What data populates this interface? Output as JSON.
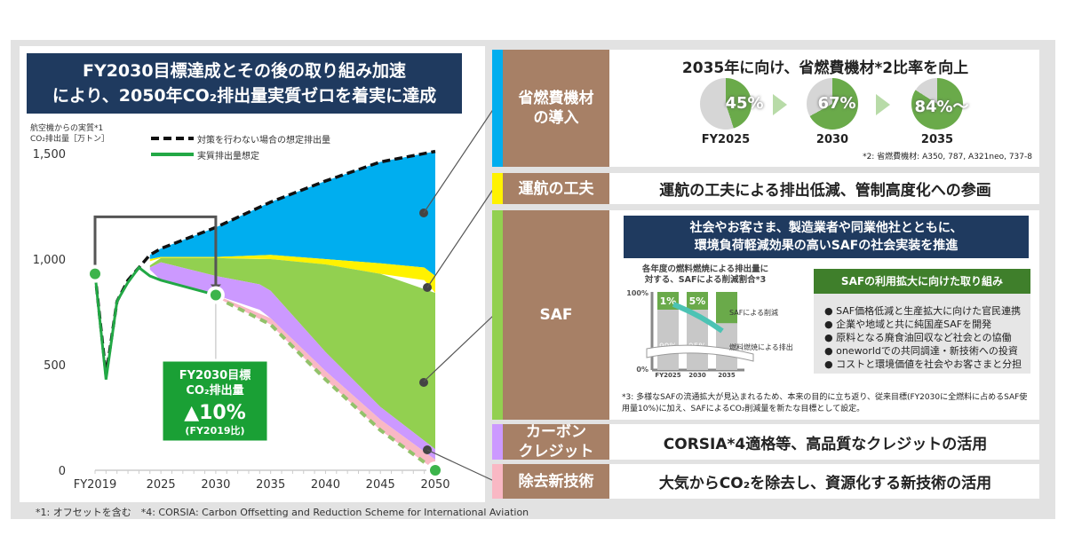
{
  "title": {
    "line1": "FY2030目標達成とその後の取り組み加速",
    "line2": "により、2050年CO₂排出量実質ゼロを着実に達成"
  },
  "chart_data": {
    "type": "area",
    "ylabel": "航空機からの実質*1 CO₂排出量［万トン］",
    "ylim": [
      0,
      1500
    ],
    "yticks": [
      "0",
      "500",
      "1,000",
      "1,500"
    ],
    "ytick_values": [
      0,
      500,
      1000,
      1500
    ],
    "xticks": [
      "FY2019",
      "2025",
      "2030",
      "2035",
      "2040",
      "2045",
      "2050"
    ],
    "xtick_values": [
      2019,
      2025,
      2030,
      2035,
      2040,
      2045,
      2050
    ],
    "xlim": [
      2019,
      2050
    ],
    "legend": [
      "対策を行わない場合の想定排出量",
      "実質排出量想定"
    ],
    "baseline": {
      "name": "対策を行わない場合の想定排出量",
      "x": [
        2019,
        2020,
        2021,
        2022,
        2023,
        2024,
        2025,
        2030,
        2035,
        2040,
        2045,
        2050
      ],
      "y": [
        930,
        450,
        800,
        900,
        960,
        1020,
        1050,
        1150,
        1270,
        1370,
        1460,
        1510
      ]
    },
    "actual": {
      "name": "実質排出量想定",
      "x": [
        2019,
        2020,
        2021,
        2022,
        2023,
        2024,
        2025,
        2030
      ],
      "y": [
        930,
        430,
        800,
        890,
        960,
        920,
        900,
        830
      ]
    },
    "layers": [
      {
        "name": "省燃費機材の導入",
        "color": "#00aeef",
        "x": [
          2024,
          2025,
          2030,
          2035,
          2040,
          2045,
          2049,
          2050
        ],
        "top": [
          1020,
          1050,
          1150,
          1270,
          1370,
          1460,
          1500,
          1510
        ],
        "bottom": [
          1000,
          1010,
          1010,
          1020,
          1000,
          980,
          960,
          920
        ]
      },
      {
        "name": "運航の工夫",
        "color": "#fff200",
        "x": [
          2024,
          2025,
          2030,
          2035,
          2040,
          2045,
          2049,
          2050
        ],
        "top": [
          1000,
          1010,
          1010,
          1020,
          1000,
          980,
          960,
          920
        ],
        "bottom": [
          990,
          1005,
          1005,
          1000,
          975,
          930,
          900,
          840
        ]
      },
      {
        "name": "SAF",
        "color": "#92d050",
        "x": [
          2024,
          2025,
          2030,
          2034,
          2035,
          2040,
          2045,
          2050
        ],
        "top": [
          970,
          1005,
          1005,
          1000,
          1000,
          975,
          930,
          840
        ],
        "bottom": [
          960,
          985,
          920,
          880,
          850,
          560,
          300,
          100
        ]
      },
      {
        "name": "カーボンクレジット",
        "color": "#cc99ff",
        "x": [
          2024,
          2025,
          2030,
          2034,
          2035,
          2040,
          2045,
          2050
        ],
        "top": [
          960,
          985,
          920,
          880,
          850,
          560,
          300,
          100
        ],
        "bottom": [
          950,
          900,
          830,
          760,
          720,
          470,
          240,
          50
        ]
      },
      {
        "name": "除去新技術",
        "color": "#f9b8c4",
        "x": [
          2030,
          2035,
          2040,
          2045,
          2050
        ],
        "top": [
          830,
          720,
          470,
          240,
          50
        ],
        "bottom": [
          820,
          690,
          430,
          190,
          0
        ]
      }
    ],
    "net": {
      "x": [
        2030,
        2035,
        2040,
        2045,
        2050
      ],
      "y": [
        820,
        690,
        430,
        190,
        0
      ]
    },
    "markers": [
      {
        "x": 2019,
        "y": 930
      },
      {
        "x": 2030,
        "y": 830
      },
      {
        "x": 2050,
        "y": 0
      }
    ],
    "callout": {
      "line1": "FY2030目標",
      "line2": "CO₂排出量",
      "value": "▲10%",
      "note": "(FY2019比)"
    }
  },
  "footnote": "*1: オフセットを含む　*4: CORSIA: Carbon Offsetting and Reduction Scheme for International Aviation",
  "rows": {
    "fuel": {
      "label1": "省燃費機材",
      "label2": "の導入",
      "headline": "2035年に向け、省燃費機材*2比率を向上",
      "pies": [
        {
          "year": "FY2025",
          "pct": "45%",
          "value": 45
        },
        {
          "year": "2030",
          "pct": "67%",
          "value": 67
        },
        {
          "year": "2035",
          "pct": "84%〜",
          "value": 84
        }
      ],
      "note": "*2: 省燃費機材: A350, 787, A321neo, 737-8"
    },
    "ops": {
      "label": "運航の工夫",
      "text": "運航の工夫による排出低減、管制高度化への参画"
    },
    "saf": {
      "label": "SAF",
      "header1": "社会やお客さま、製造業者や同業他社とともに、",
      "header2": "環境負荷軽減効果の高いSAFの社会実装を推進",
      "mini_title1": "各年度の燃料燃焼による排出量に",
      "mini_title2": "対する、SAFによる削減割合*3",
      "bars": [
        {
          "year": "FY2025",
          "saf": "1%",
          "fuel": "99%",
          "value": 1
        },
        {
          "year": "2030",
          "saf": "5%",
          "fuel": "95%",
          "value": 5
        },
        {
          "year": "2035",
          "saf": "",
          "fuel": "",
          "value": 40
        }
      ],
      "y100": "100%",
      "y0": "0%",
      "leg_saf": "SAFによる削減",
      "leg_fuel": "燃料燃焼による排出",
      "box_title": "SAFの利用拡大に向けた取り組み",
      "items": [
        "● SAF価格低減と生産拡大に向けた官民連携",
        "● 企業や地域と共に純国産SAFを開発",
        "● 原料となる廃食油回収など社会との協働",
        "● oneworldでの共同調達・新技術への投資",
        "● コストと環境価値を社会やお客さまと分担"
      ],
      "note": "*3: 多様なSAFの流通拡大が見込まれるため、本来の目的に立ち返り、従来目標(FY2030に全燃料に占めるSAF使用量10%)に加え、SAFによるCO₂削減量を新たな目標として設定。"
    },
    "credit": {
      "label1": "カーボン",
      "label2": "クレジット",
      "text": "CORSIA*4適格等、高品質なクレジットの活用"
    },
    "removal": {
      "label": "除去新技術",
      "text": "大気からCO₂を除去し、資源化する新技術の活用"
    }
  },
  "colors": {
    "navy": "#1f3a5f",
    "brown": "#a78066",
    "blue": "#00aeef",
    "yellow": "#fff200",
    "green": "#92d050",
    "purple": "#cc99ff",
    "pink": "#f9b8c4",
    "line_green": "#22a845"
  }
}
